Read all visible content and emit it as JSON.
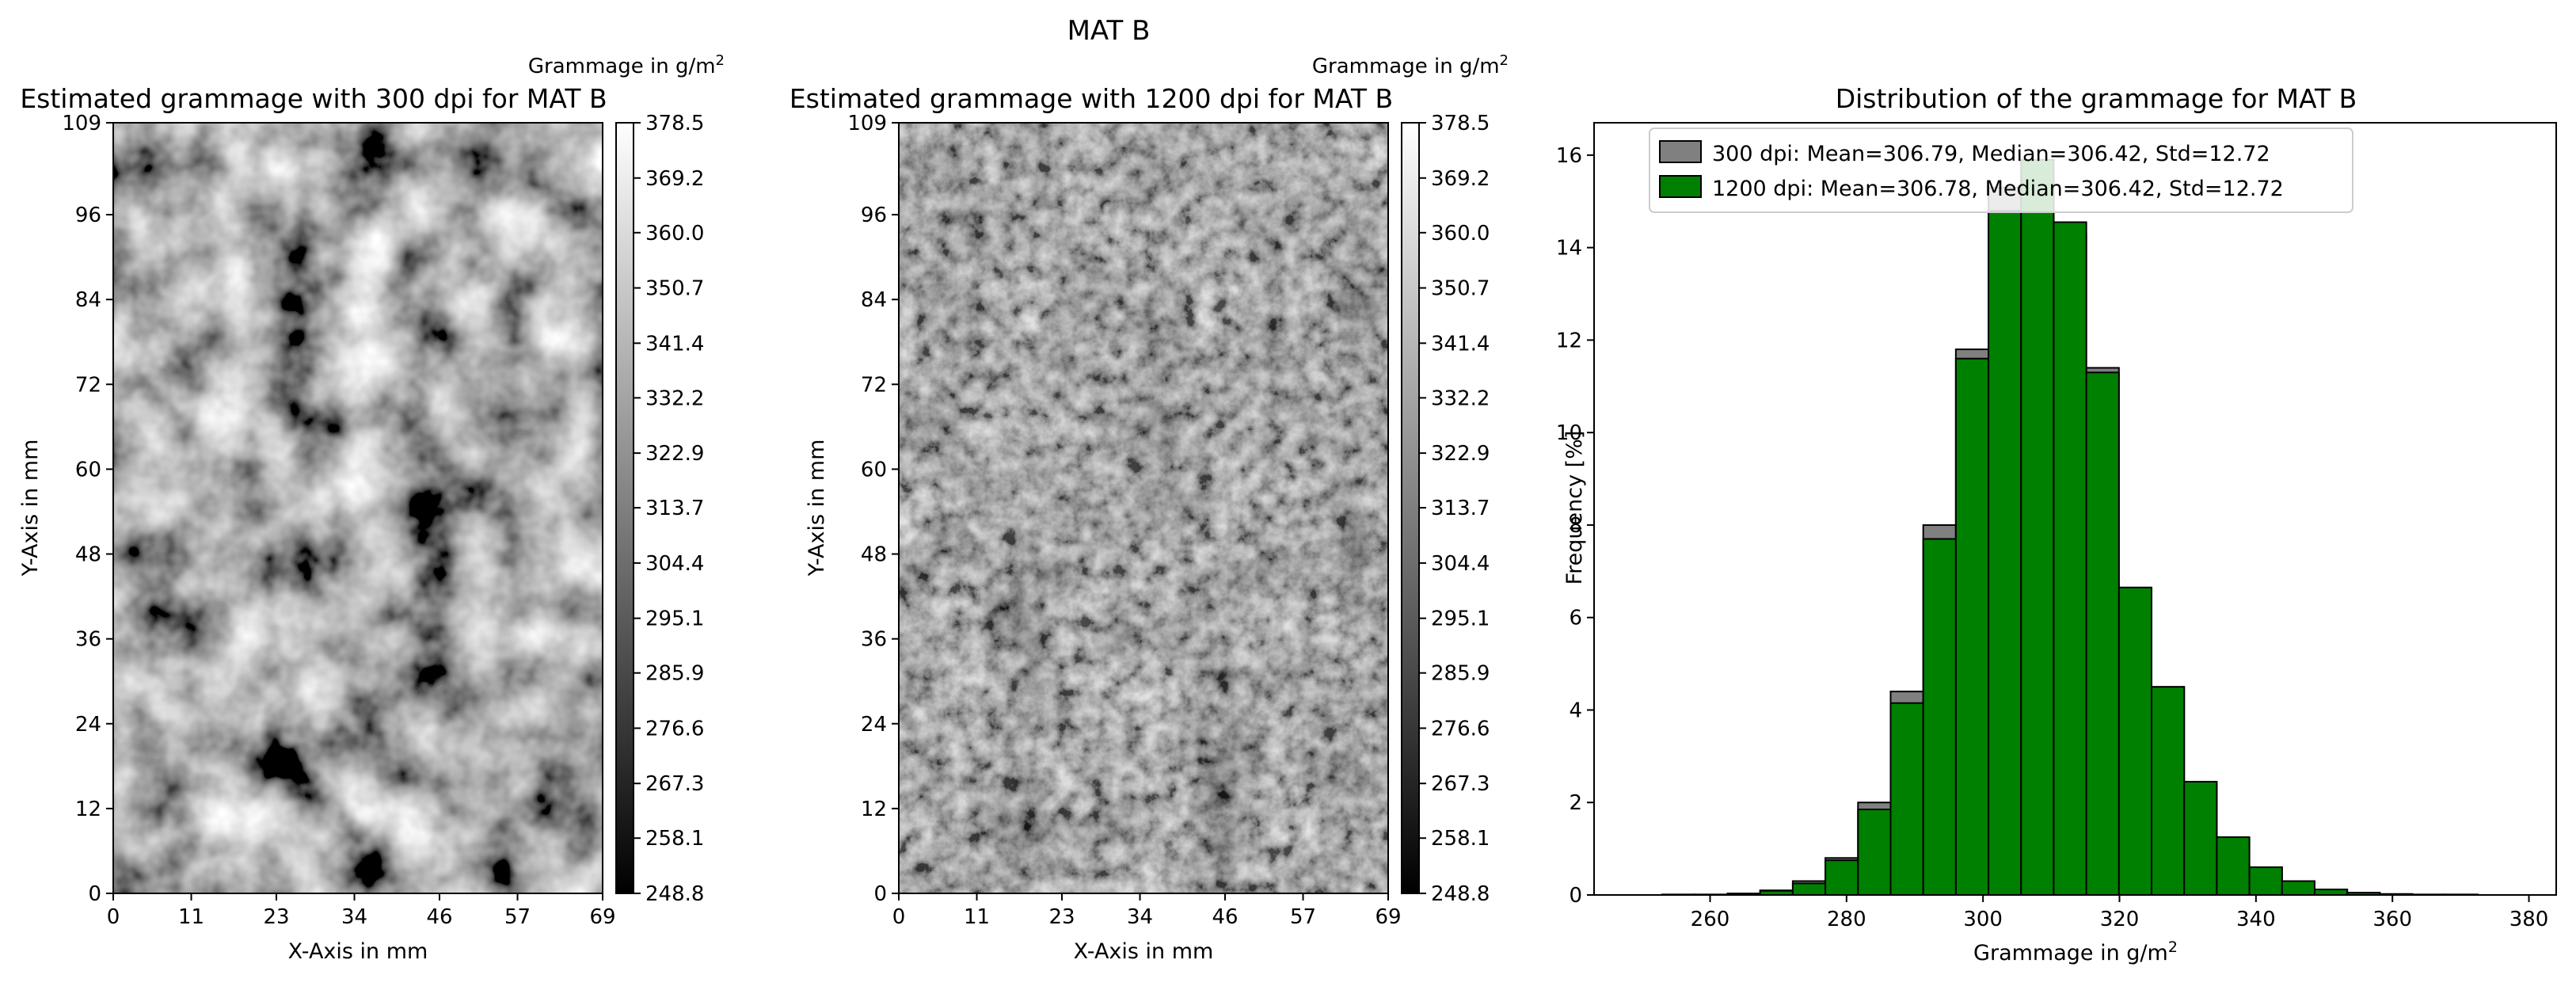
{
  "figure": {
    "suptitle": "MAT B"
  },
  "chart_data": [
    {
      "type": "heatmap",
      "title": "Estimated grammage with 300 dpi for MAT B",
      "xlabel": "X-Axis in mm",
      "ylabel": "Y-Axis in mm",
      "xticks": [
        "0",
        "11",
        "23",
        "34",
        "46",
        "57",
        "69"
      ],
      "yticks": [
        "0",
        "12",
        "24",
        "36",
        "48",
        "60",
        "72",
        "84",
        "96",
        "109"
      ],
      "xlim": [
        0,
        69
      ],
      "ylim": [
        0,
        109
      ],
      "colormap": "gray",
      "colorbar": {
        "label": "Grammage in g/m",
        "label_superscript": "2",
        "ticks": [
          "248.8",
          "258.1",
          "267.3",
          "276.6",
          "285.9",
          "295.1",
          "304.4",
          "313.7",
          "322.9",
          "332.2",
          "341.4",
          "350.7",
          "360.0",
          "369.2",
          "378.5"
        ],
        "range": [
          248.8,
          378.5
        ]
      },
      "resolution_dpi": 300
    },
    {
      "type": "heatmap",
      "title": "Estimated grammage with 1200 dpi for MAT B",
      "xlabel": "X-Axis in mm",
      "ylabel": "Y-Axis in mm",
      "xticks": [
        "0",
        "11",
        "23",
        "34",
        "46",
        "57",
        "69"
      ],
      "yticks": [
        "0",
        "12",
        "24",
        "36",
        "48",
        "60",
        "72",
        "84",
        "96",
        "109"
      ],
      "xlim": [
        0,
        69
      ],
      "ylim": [
        0,
        109
      ],
      "colormap": "gray",
      "colorbar": {
        "label": "Grammage in g/m",
        "label_superscript": "2",
        "ticks": [
          "248.8",
          "258.1",
          "267.3",
          "276.6",
          "285.9",
          "295.1",
          "304.4",
          "313.7",
          "322.9",
          "332.2",
          "341.4",
          "350.7",
          "360.0",
          "369.2",
          "378.5"
        ],
        "range": [
          248.8,
          378.5
        ]
      },
      "resolution_dpi": 1200
    },
    {
      "type": "bar",
      "subtype": "histogram",
      "title": "Distribution of the grammage for MAT B",
      "xlabel": "Grammage in g/m",
      "xlabel_superscript": "2",
      "ylabel": "Frequency [%]",
      "xlim": [
        243,
        384
      ],
      "ylim": [
        0,
        16.7
      ],
      "xticks": [
        260,
        280,
        300,
        320,
        340,
        360,
        380
      ],
      "yticks": [
        0,
        2,
        4,
        6,
        8,
        10,
        12,
        14,
        16
      ],
      "bin_width": 4.78,
      "bin_start": 253,
      "legend_position": "upper-left",
      "series": [
        {
          "name": "300 dpi: Mean=306.79, Median=306.42, Std=12.72",
          "color": "#808080",
          "values": [
            0.01,
            0.01,
            0.03,
            0.1,
            0.3,
            0.8,
            2.0,
            4.4,
            8.0,
            11.8,
            15.3,
            15.7,
            14.3,
            11.4,
            6.6,
            4.5,
            2.4,
            1.2,
            0.6,
            0.28,
            0.1,
            0.04,
            0.02,
            0.01,
            0.01
          ]
        },
        {
          "name": "1200 dpi: Mean=306.78, Median=306.42, Std=12.72",
          "color": "#008000",
          "values": [
            0.01,
            0.01,
            0.03,
            0.09,
            0.25,
            0.75,
            1.85,
            4.15,
            7.7,
            11.6,
            14.8,
            15.9,
            14.55,
            11.3,
            6.65,
            4.5,
            2.45,
            1.25,
            0.6,
            0.3,
            0.12,
            0.05,
            0.02,
            0.01,
            0.01
          ]
        }
      ]
    }
  ]
}
